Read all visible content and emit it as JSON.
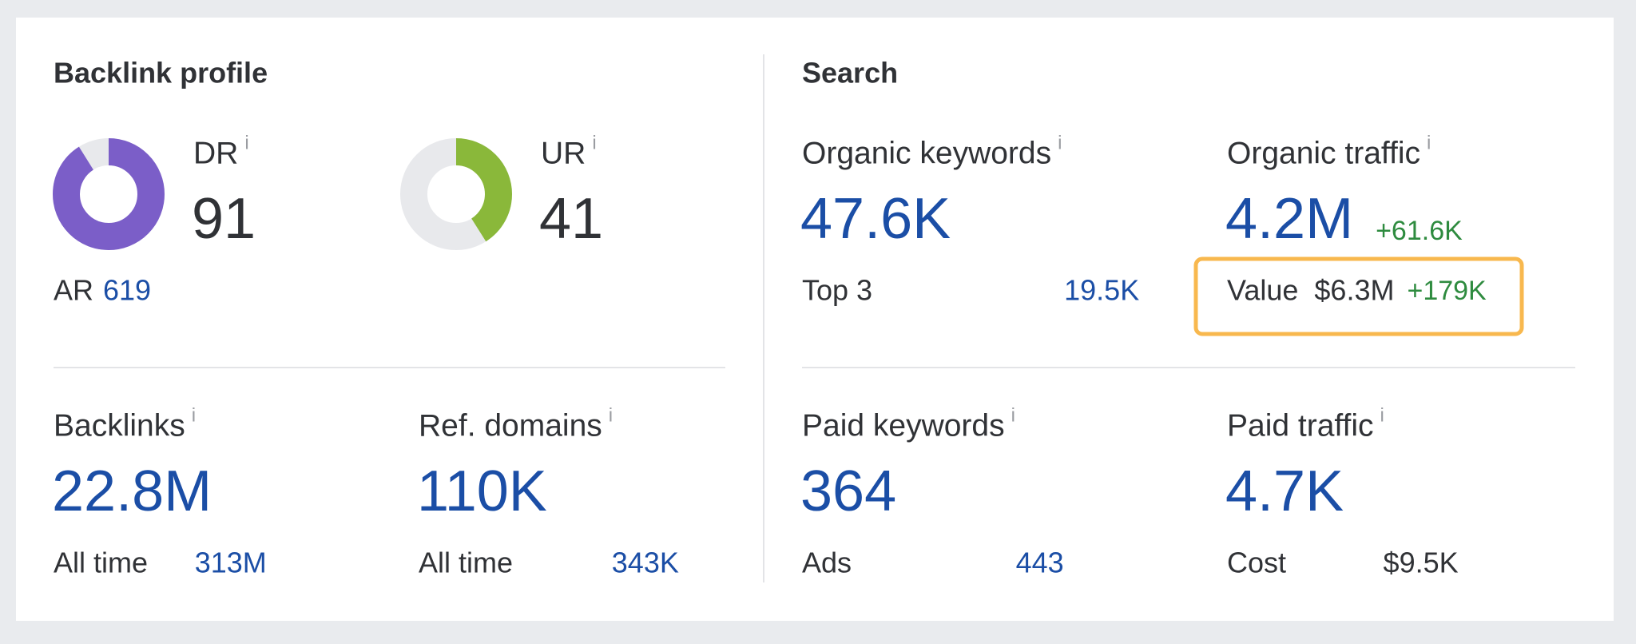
{
  "info_icon": "i",
  "backlink_profile": {
    "title": "Backlink profile",
    "dr": {
      "label": "DR",
      "value": 91,
      "range": [
        0,
        100
      ]
    },
    "ur": {
      "label": "UR",
      "value": 41,
      "range": [
        0,
        100
      ]
    },
    "ar": {
      "label": "AR",
      "value": "619"
    },
    "backlinks": {
      "label": "Backlinks",
      "value": "22.8M",
      "sub_label": "All time",
      "sub_value": "313M"
    },
    "ref_domains": {
      "label": "Ref. domains",
      "value": "110K",
      "sub_label": "All time",
      "sub_value": "343K"
    }
  },
  "search": {
    "title": "Search",
    "organic_keywords": {
      "label": "Organic keywords",
      "value": "47.6K",
      "sub_label": "Top 3",
      "sub_value": "19.5K"
    },
    "organic_traffic": {
      "label": "Organic traffic",
      "value": "4.2M",
      "change": "+61.6K",
      "value_label": "Value",
      "traffic_value": "$6.3M",
      "value_change": "+179K"
    },
    "paid_keywords": {
      "label": "Paid keywords",
      "value": "364",
      "sub_label": "Ads",
      "sub_value": "443"
    },
    "paid_traffic": {
      "label": "Paid traffic",
      "value": "4.7K",
      "sub_label": "Cost",
      "sub_value": "$9.5K"
    }
  }
}
